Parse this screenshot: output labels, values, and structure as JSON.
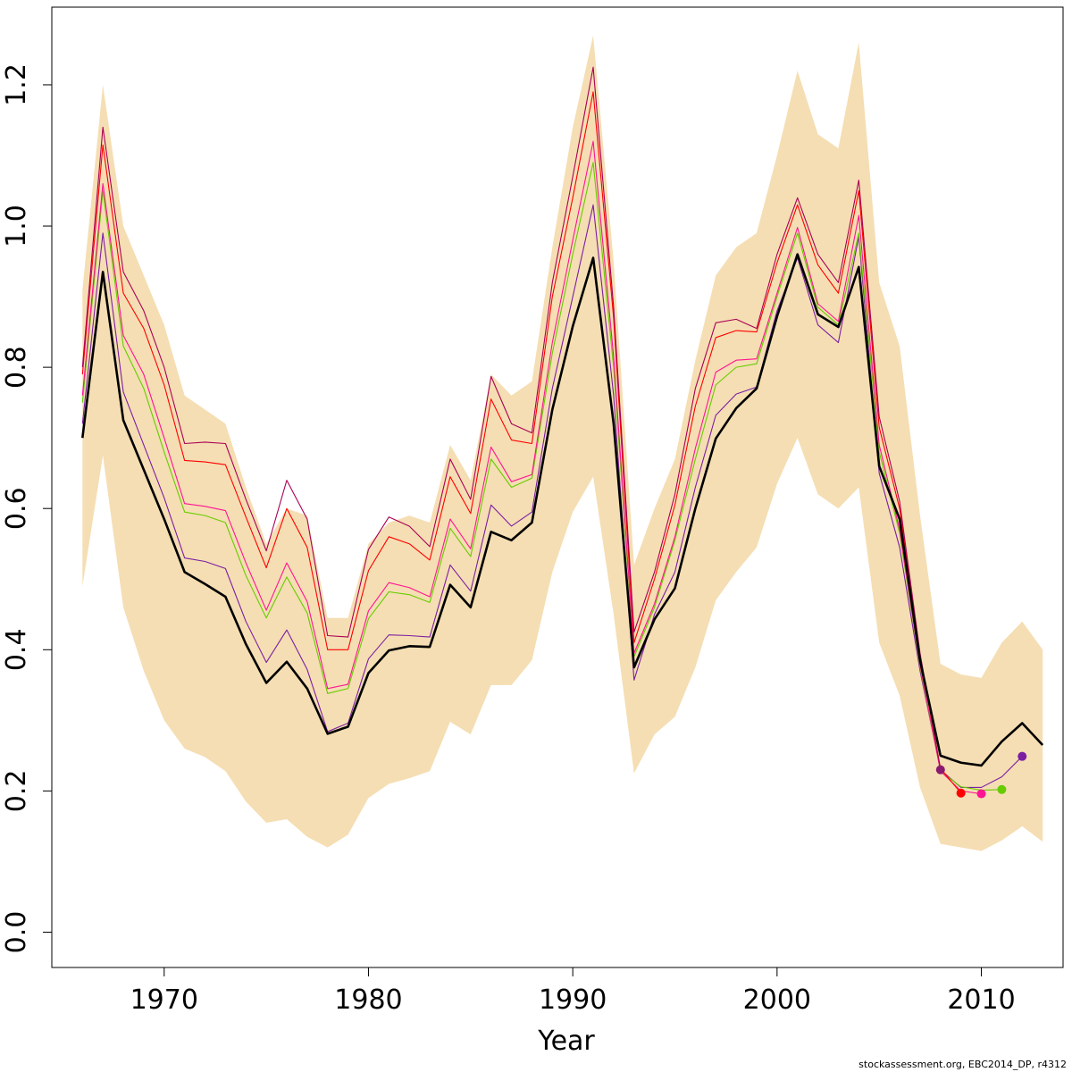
{
  "chart_data": {
    "type": "line",
    "xlabel": "Year",
    "ylabel": "",
    "xlim": [
      1964.5,
      2014
    ],
    "ylim": [
      -0.05,
      1.31
    ],
    "x_ticks": [
      1970,
      1980,
      1990,
      2000,
      2010
    ],
    "x_tick_labels": [
      "1970",
      "1980",
      "1990",
      "2000",
      "2010"
    ],
    "y_ticks": [
      0.0,
      0.2,
      0.4,
      0.6,
      0.8,
      1.0,
      1.2
    ],
    "y_tick_labels": [
      "0.0",
      "0.2",
      "0.4",
      "0.6",
      "0.8",
      "1.0",
      "1.2"
    ],
    "band": {
      "color": "#F5DEB3",
      "x": [
        1966,
        1967,
        1968,
        1969,
        1970,
        1971,
        1972,
        1973,
        1974,
        1975,
        1976,
        1977,
        1978,
        1979,
        1980,
        1981,
        1982,
        1983,
        1984,
        1985,
        1986,
        1987,
        1988,
        1989,
        1990,
        1991,
        1992,
        1993,
        1994,
        1995,
        1996,
        1997,
        1998,
        1999,
        2000,
        2001,
        2002,
        2003,
        2004,
        2005,
        2006,
        2007,
        2008,
        2009,
        2010,
        2011,
        2012,
        2013
      ],
      "upper": [
        0.91,
        1.2,
        1.0,
        0.93,
        0.86,
        0.76,
        0.74,
        0.72,
        0.63,
        0.55,
        0.6,
        0.59,
        0.445,
        0.445,
        0.55,
        0.58,
        0.59,
        0.58,
        0.69,
        0.64,
        0.79,
        0.76,
        0.78,
        0.97,
        1.14,
        1.27,
        0.95,
        0.52,
        0.6,
        0.67,
        0.81,
        0.93,
        0.97,
        0.99,
        1.1,
        1.22,
        1.13,
        1.11,
        1.26,
        0.92,
        0.83,
        0.59,
        0.38,
        0.365,
        0.36,
        0.41,
        0.44,
        0.4
      ],
      "lower": [
        0.49,
        0.675,
        0.46,
        0.37,
        0.3,
        0.26,
        0.248,
        0.228,
        0.185,
        0.155,
        0.16,
        0.135,
        0.12,
        0.138,
        0.19,
        0.21,
        0.218,
        0.228,
        0.298,
        0.28,
        0.35,
        0.35,
        0.385,
        0.51,
        0.595,
        0.645,
        0.45,
        0.225,
        0.28,
        0.305,
        0.375,
        0.47,
        0.51,
        0.545,
        0.635,
        0.7,
        0.62,
        0.6,
        0.63,
        0.41,
        0.335,
        0.205,
        0.125,
        0.12,
        0.115,
        0.13,
        0.15,
        0.128
      ]
    },
    "series": [
      {
        "color": "#000000",
        "width": 2.6,
        "x": [
          1966,
          1967,
          1968,
          1969,
          1970,
          1971,
          1972,
          1973,
          1974,
          1975,
          1976,
          1977,
          1978,
          1979,
          1980,
          1981,
          1982,
          1983,
          1984,
          1985,
          1986,
          1987,
          1988,
          1989,
          1990,
          1991,
          1992,
          1993,
          1994,
          1995,
          1996,
          1997,
          1998,
          1999,
          2000,
          2001,
          2002,
          2003,
          2004,
          2005,
          2006,
          2007,
          2008,
          2009,
          2010,
          2011,
          2012,
          2013
        ],
        "y": [
          0.7,
          0.935,
          0.725,
          0.655,
          0.585,
          0.51,
          0.493,
          0.475,
          0.408,
          0.353,
          0.383,
          0.345,
          0.281,
          0.291,
          0.367,
          0.399,
          0.405,
          0.404,
          0.492,
          0.46,
          0.567,
          0.555,
          0.58,
          0.74,
          0.858,
          0.955,
          0.72,
          0.375,
          0.443,
          0.487,
          0.6,
          0.699,
          0.742,
          0.77,
          0.872,
          0.96,
          0.875,
          0.857,
          0.942,
          0.66,
          0.585,
          0.385,
          0.25,
          0.24,
          0.236,
          0.27,
          0.296,
          0.265
        ]
      },
      {
        "color": "#7B1FA2",
        "width": 1.1,
        "x": [
          1966,
          1967,
          1968,
          1969,
          1970,
          1971,
          1972,
          1973,
          1974,
          1975,
          1976,
          1977,
          1978,
          1979,
          1980,
          1981,
          1982,
          1983,
          1984,
          1985,
          1986,
          1987,
          1988,
          1989,
          1990,
          1991,
          1992,
          1993,
          1994,
          1995,
          1996,
          1997,
          1998,
          1999,
          2000,
          2001,
          2002,
          2003,
          2004,
          2005,
          2006,
          2007,
          2008,
          2009,
          2010,
          2011,
          2012
        ],
        "y": [
          0.72,
          0.99,
          0.765,
          0.69,
          0.615,
          0.53,
          0.525,
          0.515,
          0.44,
          0.382,
          0.428,
          0.372,
          0.284,
          0.296,
          0.387,
          0.421,
          0.42,
          0.418,
          0.52,
          0.483,
          0.605,
          0.575,
          0.595,
          0.77,
          0.9,
          1.03,
          0.76,
          0.357,
          0.45,
          0.51,
          0.63,
          0.732,
          0.762,
          0.772,
          0.88,
          0.955,
          0.86,
          0.835,
          0.985,
          0.65,
          0.545,
          0.37,
          0.23,
          0.205,
          0.205,
          0.22,
          0.249
        ]
      },
      {
        "color": "#66CC00",
        "width": 1.1,
        "x": [
          1966,
          1967,
          1968,
          1969,
          1970,
          1971,
          1972,
          1973,
          1974,
          1975,
          1976,
          1977,
          1978,
          1979,
          1980,
          1981,
          1982,
          1983,
          1984,
          1985,
          1986,
          1987,
          1988,
          1989,
          1990,
          1991,
          1992,
          1993,
          1994,
          1995,
          1996,
          1997,
          1998,
          1999,
          2000,
          2001,
          2002,
          2003,
          2004,
          2005,
          2006,
          2007,
          2008,
          2009,
          2010,
          2011
        ],
        "y": [
          0.75,
          1.05,
          0.83,
          0.77,
          0.68,
          0.595,
          0.59,
          0.58,
          0.505,
          0.445,
          0.503,
          0.452,
          0.338,
          0.345,
          0.444,
          0.482,
          0.478,
          0.467,
          0.572,
          0.532,
          0.67,
          0.63,
          0.643,
          0.82,
          0.96,
          1.09,
          0.8,
          0.39,
          0.46,
          0.555,
          0.67,
          0.775,
          0.8,
          0.805,
          0.9,
          0.99,
          0.885,
          0.86,
          0.99,
          0.68,
          0.565,
          0.375,
          0.228,
          0.206,
          0.201,
          0.202
        ]
      },
      {
        "color": "#FF1493",
        "width": 1.1,
        "x": [
          1966,
          1967,
          1968,
          1969,
          1970,
          1971,
          1972,
          1973,
          1974,
          1975,
          1976,
          1977,
          1978,
          1979,
          1980,
          1981,
          1982,
          1983,
          1984,
          1985,
          1986,
          1987,
          1988,
          1989,
          1990,
          1991,
          1992,
          1993,
          1994,
          1995,
          1996,
          1997,
          1998,
          1999,
          2000,
          2001,
          2002,
          2003,
          2004,
          2005,
          2006,
          2007,
          2008,
          2009,
          2010
        ],
        "y": [
          0.76,
          1.06,
          0.845,
          0.79,
          0.7,
          0.607,
          0.603,
          0.597,
          0.523,
          0.456,
          0.523,
          0.468,
          0.345,
          0.351,
          0.455,
          0.495,
          0.488,
          0.475,
          0.585,
          0.543,
          0.687,
          0.638,
          0.648,
          0.835,
          0.98,
          1.12,
          0.815,
          0.395,
          0.465,
          0.56,
          0.685,
          0.793,
          0.81,
          0.812,
          0.905,
          0.998,
          0.89,
          0.865,
          1.015,
          0.69,
          0.57,
          0.378,
          0.228,
          0.2,
          0.196
        ]
      },
      {
        "color": "#FF0000",
        "width": 1.1,
        "x": [
          1966,
          1967,
          1968,
          1969,
          1970,
          1971,
          1972,
          1973,
          1974,
          1975,
          1976,
          1977,
          1978,
          1979,
          1980,
          1981,
          1982,
          1983,
          1984,
          1985,
          1986,
          1987,
          1988,
          1989,
          1990,
          1991,
          1992,
          1993,
          1994,
          1995,
          1996,
          1997,
          1998,
          1999,
          2000,
          2001,
          2002,
          2003,
          2004,
          2005,
          2006,
          2007,
          2008,
          2009
        ],
        "y": [
          0.79,
          1.115,
          0.905,
          0.855,
          0.775,
          0.668,
          0.666,
          0.662,
          0.588,
          0.516,
          0.6,
          0.545,
          0.4,
          0.4,
          0.512,
          0.56,
          0.55,
          0.527,
          0.645,
          0.593,
          0.755,
          0.697,
          0.692,
          0.9,
          1.04,
          1.19,
          0.87,
          0.41,
          0.5,
          0.605,
          0.745,
          0.842,
          0.852,
          0.85,
          0.948,
          1.03,
          0.945,
          0.905,
          1.05,
          0.715,
          0.6,
          0.39,
          0.232,
          0.197
        ]
      },
      {
        "color": "#AA0055",
        "width": 1.1,
        "x": [
          1966,
          1967,
          1968,
          1969,
          1970,
          1971,
          1972,
          1973,
          1974,
          1975,
          1976,
          1977,
          1978,
          1979,
          1980,
          1981,
          1982,
          1983,
          1984,
          1985,
          1986,
          1987,
          1988,
          1989,
          1990,
          1991,
          1992,
          1993,
          1994,
          1995,
          1996,
          1997,
          1998,
          1999,
          2000,
          2001,
          2002,
          2003,
          2004,
          2005,
          2006,
          2007,
          2008
        ],
        "y": [
          0.8,
          1.14,
          0.935,
          0.88,
          0.8,
          0.692,
          0.694,
          0.692,
          0.613,
          0.54,
          0.64,
          0.585,
          0.42,
          0.418,
          0.542,
          0.588,
          0.575,
          0.546,
          0.67,
          0.613,
          0.787,
          0.72,
          0.707,
          0.92,
          1.07,
          1.225,
          0.885,
          0.425,
          0.51,
          0.62,
          0.77,
          0.863,
          0.868,
          0.855,
          0.96,
          1.04,
          0.96,
          0.92,
          1.065,
          0.73,
          0.61,
          0.395,
          0.23
        ]
      }
    ],
    "endpoints": [
      {
        "x": 2008,
        "y": 0.23,
        "color": "#8B1A6E"
      },
      {
        "x": 2009,
        "y": 0.197,
        "color": "#FF0000"
      },
      {
        "x": 2010,
        "y": 0.196,
        "color": "#FF1493"
      },
      {
        "x": 2011,
        "y": 0.202,
        "color": "#66CC00"
      },
      {
        "x": 2012,
        "y": 0.249,
        "color": "#7B1FA2"
      }
    ]
  },
  "footer_text": "stockassessment.org, EBC2014_DP, r4312"
}
